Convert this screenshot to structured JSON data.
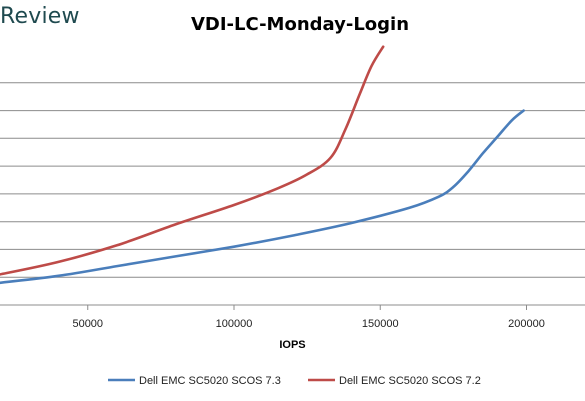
{
  "brand": "Review",
  "chart_data": {
    "type": "line",
    "title": "VDI-LC-Monday-Login",
    "xlabel": "IOPS",
    "ylabel": "",
    "xlim": [
      20000,
      220000
    ],
    "ylim": [
      0,
      9
    ],
    "x_ticks": [
      "50000",
      "100000",
      "150000",
      "200000"
    ],
    "x_tick_values": [
      50000,
      100000,
      150000,
      200000
    ],
    "gridlines_y": [
      1,
      2,
      3,
      4,
      5,
      6,
      7,
      8
    ],
    "grid": true,
    "legend": "bottom",
    "series": [
      {
        "name": "Dell EMC SC5020 SCOS 7.3",
        "color": "#4a7ebb",
        "points": [
          [
            20000,
            0.8
          ],
          [
            40000,
            1.05
          ],
          [
            60000,
            1.4
          ],
          [
            80000,
            1.75
          ],
          [
            100000,
            2.1
          ],
          [
            120000,
            2.5
          ],
          [
            140000,
            2.95
          ],
          [
            160000,
            3.5
          ],
          [
            170000,
            3.9
          ],
          [
            175000,
            4.25
          ],
          [
            180000,
            4.8
          ],
          [
            185000,
            5.45
          ],
          [
            190000,
            6.05
          ],
          [
            195000,
            6.65
          ],
          [
            199000,
            7.0
          ]
        ]
      },
      {
        "name": "Dell EMC SC5020 SCOS 7.2",
        "color": "#be4b48",
        "points": [
          [
            20000,
            1.1
          ],
          [
            40000,
            1.55
          ],
          [
            60000,
            2.15
          ],
          [
            80000,
            2.9
          ],
          [
            100000,
            3.6
          ],
          [
            115000,
            4.2
          ],
          [
            125000,
            4.7
          ],
          [
            133000,
            5.3
          ],
          [
            138000,
            6.3
          ],
          [
            143000,
            7.6
          ],
          [
            147000,
            8.6
          ],
          [
            151000,
            9.3
          ]
        ]
      }
    ]
  }
}
